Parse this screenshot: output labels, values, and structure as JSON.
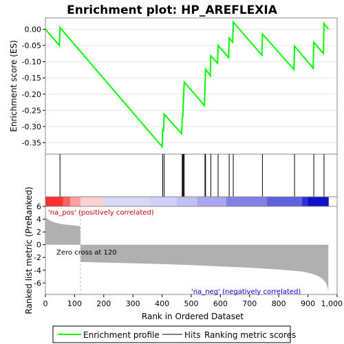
{
  "chart_data": {
    "type": "line",
    "title": "Enrichment plot: HP_AREFLEXIA",
    "es_panel": {
      "ylabel": "Enrichment score (ES)",
      "ylim": [
        -0.385,
        0.035
      ],
      "yticks": [
        0.0,
        -0.05,
        -0.1,
        -0.15,
        -0.2,
        -0.25,
        -0.3,
        -0.35
      ],
      "ytick_labels": [
        "0.00",
        "-0.05",
        "-0.10",
        "-0.15",
        "-0.20",
        "-0.25",
        "-0.30",
        "-0.35"
      ],
      "series": [
        {
          "name": "Enrichment profile",
          "color": "#00ff00",
          "x": [
            0,
            48,
            50,
            400,
            402,
            405,
            407,
            467,
            469,
            471,
            473,
            476,
            545,
            547,
            549,
            565,
            567,
            590,
            592,
            628,
            630,
            642,
            644,
            742,
            744,
            852,
            854,
            918,
            920,
            953,
            955,
            970
          ],
          "y": [
            0.0,
            -0.05,
            0.005,
            -0.362,
            -0.31,
            -0.312,
            -0.262,
            -0.322,
            -0.272,
            -0.27,
            -0.22,
            -0.163,
            -0.235,
            -0.185,
            -0.123,
            -0.143,
            -0.082,
            -0.105,
            -0.05,
            -0.087,
            -0.027,
            -0.04,
            0.022,
            -0.08,
            -0.015,
            -0.124,
            -0.052,
            -0.12,
            -0.04,
            -0.075,
            0.018,
            0.0
          ]
        }
      ]
    },
    "hits": {
      "name": "Hits",
      "color": "#000000",
      "x": [
        50,
        402,
        407,
        469,
        471,
        473,
        476,
        547,
        549,
        567,
        592,
        630,
        644,
        744,
        854,
        920,
        955
      ]
    },
    "rank_panel": {
      "ylabel": "Ranked list metric (PreRanked)",
      "xlabel": "Rank in Ordered Dataset",
      "xlim": [
        0,
        1000
      ],
      "ylim": [
        -7.8,
        6
      ],
      "yticks": [
        6,
        4,
        2,
        0,
        -2,
        -4,
        -6
      ],
      "ytick_labels": [
        "6",
        "4",
        "2",
        "0",
        "-2",
        "-4",
        "-6"
      ],
      "xticks": [
        0,
        100,
        200,
        300,
        400,
        500,
        600,
        700,
        800,
        900,
        1000
      ],
      "xtick_labels": [
        "0",
        "100",
        "200",
        "300",
        "400",
        "500",
        "600",
        "700",
        "800",
        "900",
        "1,000"
      ],
      "metric_profile": {
        "name": "Ranking metric scores",
        "color": "#b0b0b0",
        "x": [
          0,
          5,
          15,
          30,
          60,
          100,
          119,
          120,
          121,
          200,
          300,
          400,
          500,
          600,
          700,
          800,
          880,
          910,
          930,
          945,
          955,
          962,
          967,
          970
        ],
        "y": [
          4.3,
          4.1,
          3.8,
          3.5,
          3.2,
          3.0,
          2.9,
          0.0,
          -2.7,
          -2.8,
          -2.9,
          -3.05,
          -3.2,
          -3.4,
          -3.6,
          -3.9,
          -4.2,
          -4.5,
          -4.8,
          -5.2,
          -5.6,
          -6.0,
          -6.7,
          -7.3
        ]
      },
      "zero_cross": 120,
      "zero_cross_label": "Zero cross at 120",
      "pos_label": "'na_pos' (positively correlated)",
      "neg_label": "'na_neg' (negatively correlated)",
      "pos_label_color": "#cc0000",
      "neg_label_color": "#0000cc"
    },
    "color_bar": {
      "n": 970,
      "stops": [
        {
          "x": 0,
          "color": "#ff3030"
        },
        {
          "x": 60,
          "color": "#ff6060"
        },
        {
          "x": 85,
          "color": "#ffa0a0"
        },
        {
          "x": 120,
          "color": "#ffd0d0"
        },
        {
          "x": 200,
          "color": "#d8d8f8"
        },
        {
          "x": 360,
          "color": "#d0d0f8"
        },
        {
          "x": 450,
          "color": "#c0c0f4"
        },
        {
          "x": 520,
          "color": "#a8a8ee"
        },
        {
          "x": 620,
          "color": "#8080e6"
        },
        {
          "x": 760,
          "color": "#6060e0"
        },
        {
          "x": 880,
          "color": "#3030d8"
        },
        {
          "x": 900,
          "color": "#1010c8"
        },
        {
          "x": 970,
          "color": "#0000b0"
        }
      ]
    },
    "legend": {
      "placement": "bottom",
      "items": [
        {
          "name": "Enrichment profile",
          "color": "#00ff00"
        },
        {
          "name": "Hits",
          "color": "#000000"
        },
        {
          "name": "Ranking metric scores",
          "color": "#c0c0c0"
        }
      ]
    }
  }
}
